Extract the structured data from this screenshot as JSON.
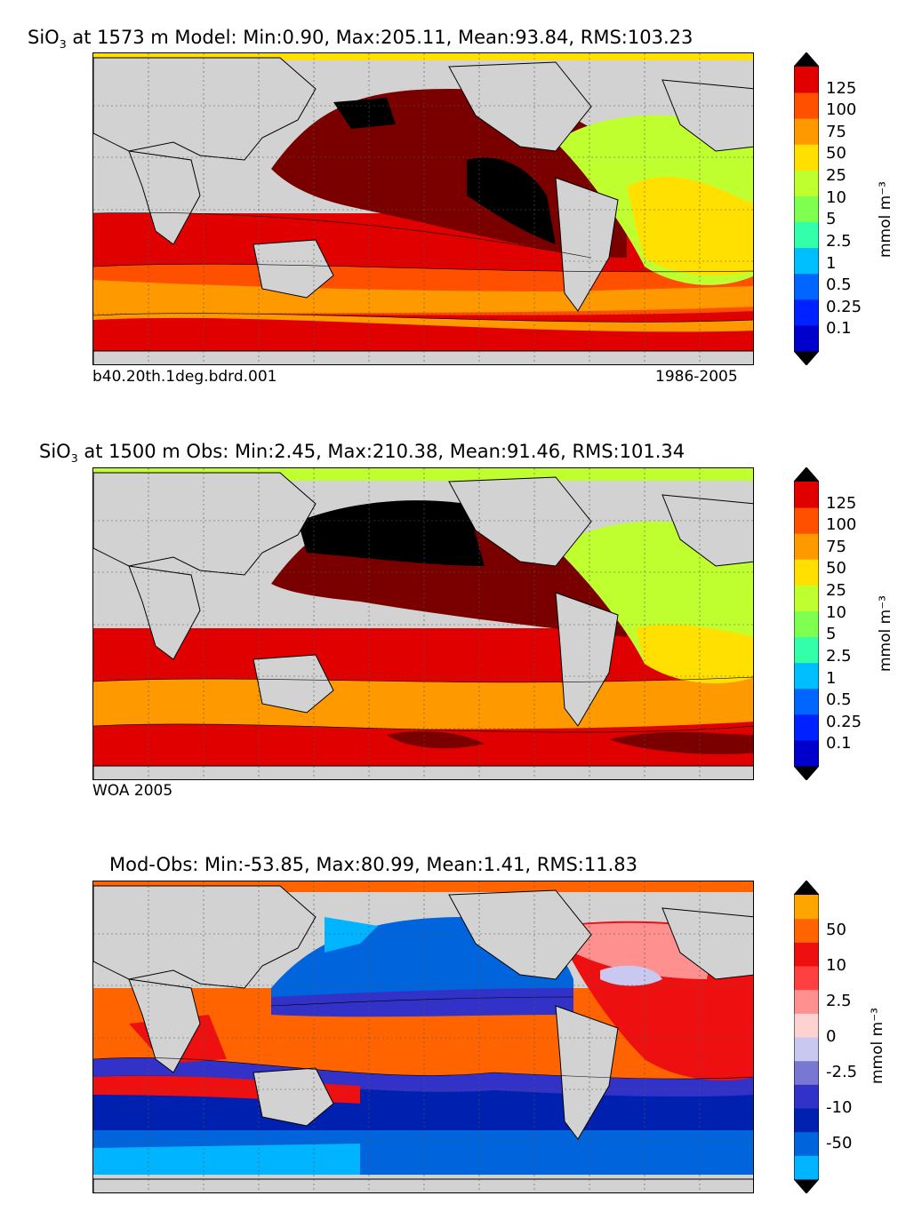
{
  "panels": [
    {
      "title": "SiO3 at 1573 m Model: Min:0.90, Max:205.11, Mean:93.84, RMS:103.23",
      "title_parts": {
        "chem": "SiO",
        "sub": "3",
        "rest": " at 1573 m Model: Min:0.90, Max:205.11, Mean:93.84, RMS:103.23"
      },
      "footer_left": "b40.20th.1deg.bdrd.001",
      "footer_right": "1986-2005",
      "colorbar": {
        "unit": "mmol m⁻³",
        "ticks": [
          "125",
          "100",
          "75",
          "50",
          "25",
          "10",
          "5",
          "2.5",
          "1",
          "0.5",
          "0.25",
          "0.1"
        ],
        "colors": [
          "#00008b",
          "#0000cc",
          "#0022ff",
          "#0066ff",
          "#00bfff",
          "#33ffaa",
          "#7fff50",
          "#bfff30",
          "#ffe000",
          "#ff9900",
          "#ff5000",
          "#e00000",
          "#7a0000"
        ]
      }
    },
    {
      "title": "SiO3 at 1500 m Obs: Min:2.45, Max:210.38, Mean:91.46, RMS:101.34",
      "title_parts": {
        "chem": "SiO",
        "sub": "3",
        "rest": " at 1500 m Obs: Min:2.45, Max:210.38, Mean:91.46, RMS:101.34"
      },
      "footer_left": "WOA 2005",
      "footer_right": "",
      "colorbar": {
        "unit": "mmol m⁻³",
        "ticks": [
          "125",
          "100",
          "75",
          "50",
          "25",
          "10",
          "5",
          "2.5",
          "1",
          "0.5",
          "0.25",
          "0.1"
        ],
        "colors": [
          "#00008b",
          "#0000cc",
          "#0022ff",
          "#0066ff",
          "#00bfff",
          "#33ffaa",
          "#7fff50",
          "#bfff30",
          "#ffe000",
          "#ff9900",
          "#ff5000",
          "#e00000",
          "#7a0000"
        ]
      }
    },
    {
      "title": "Mod-Obs: Min:-53.85, Max:80.99, Mean:1.41, RMS:11.83",
      "footer_left": "",
      "footer_right": "",
      "colorbar": {
        "unit": "mmol m⁻³",
        "ticks": [
          "50",
          "10",
          "2.5",
          "0",
          "-2.5",
          "-10",
          "-50"
        ],
        "colors": [
          "#00ffff",
          "#00b4ff",
          "#0064dc",
          "#0020b0",
          "#3232c8",
          "#7878d2",
          "#c8c8f0",
          "#ffd2d2",
          "#ff9090",
          "#ff4040",
          "#ee1010",
          "#ff6400",
          "#ffa500",
          "#ffff28"
        ]
      }
    }
  ],
  "chart_data": [
    {
      "type": "heatmap",
      "title": "SiO3 at 1573 m Model: Min:0.90, Max:205.11, Mean:93.84, RMS:103.23",
      "colorbar_label": "mmol m-3",
      "levels": [
        0.1,
        0.25,
        0.5,
        1,
        2.5,
        5,
        10,
        25,
        50,
        75,
        100,
        125
      ],
      "stats": {
        "min": 0.9,
        "max": 205.11,
        "mean": 93.84,
        "rms": 103.23
      },
      "case": "b40.20th.1deg.bdrd.001",
      "period": "1986-2005"
    },
    {
      "type": "heatmap",
      "title": "SiO3 at 1500 m Obs: Min:2.45, Max:210.38, Mean:91.46, RMS:101.34",
      "colorbar_label": "mmol m-3",
      "levels": [
        0.1,
        0.25,
        0.5,
        1,
        2.5,
        5,
        10,
        25,
        50,
        75,
        100,
        125
      ],
      "stats": {
        "min": 2.45,
        "max": 210.38,
        "mean": 91.46,
        "rms": 101.34
      },
      "source": "WOA 2005"
    },
    {
      "type": "heatmap",
      "title": "Mod-Obs: Min:-53.85, Max:80.99, Mean:1.41, RMS:11.83",
      "colorbar_label": "mmol m-3",
      "levels": [
        -50,
        -10,
        -2.5,
        0,
        2.5,
        10,
        50
      ],
      "stats": {
        "min": -53.85,
        "max": 80.99,
        "mean": 1.41,
        "rms": 11.83
      }
    }
  ]
}
